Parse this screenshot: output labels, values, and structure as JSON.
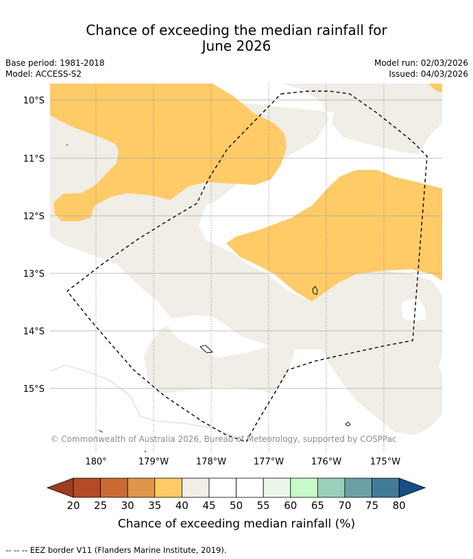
{
  "title": {
    "line1": "Chance of exceeding the median rainfall for",
    "line2": "June 2026"
  },
  "meta": {
    "base_period": "Base period: 1981-2018",
    "model": "Model: ACCESS-S2",
    "model_run": "Model run: 02/03/2026",
    "issued": "Issued: 04/03/2026"
  },
  "map": {
    "lat_labels": [
      "10°S",
      "11°S",
      "12°S",
      "13°S",
      "14°S",
      "15°S"
    ],
    "lon_labels": [
      "180°",
      "179°W",
      "178°W",
      "177°W",
      "176°W",
      "175°W"
    ],
    "copyright": "© Commonwealth of Australia 2026, Bureau of Meteorology, supported by COSPPac",
    "colors": {
      "below_40": "#fecb66",
      "neutral_40_45": "#f1ede7",
      "white_45_55": "#ffffff",
      "land_outline": "#000000",
      "eez_border": "#000000"
    }
  },
  "legend": {
    "label": "Chance of exceeding median rainfall (%)",
    "ticks": [
      "20",
      "25",
      "30",
      "35",
      "40",
      "45",
      "50",
      "55",
      "60",
      "65",
      "70",
      "75",
      "80"
    ],
    "colors": [
      "#9e3c22",
      "#b54a27",
      "#cc6a33",
      "#e0964a",
      "#fecb66",
      "#f1ede7",
      "#ffffff",
      "#ffffff",
      "#eaf6ea",
      "#c8fac8",
      "#9ccfb9",
      "#6aa1a6",
      "#427b96",
      "#174e87"
    ]
  },
  "footnote": "-- -- -- EEZ border V11 (Flanders Marine Institute, 2019)."
}
